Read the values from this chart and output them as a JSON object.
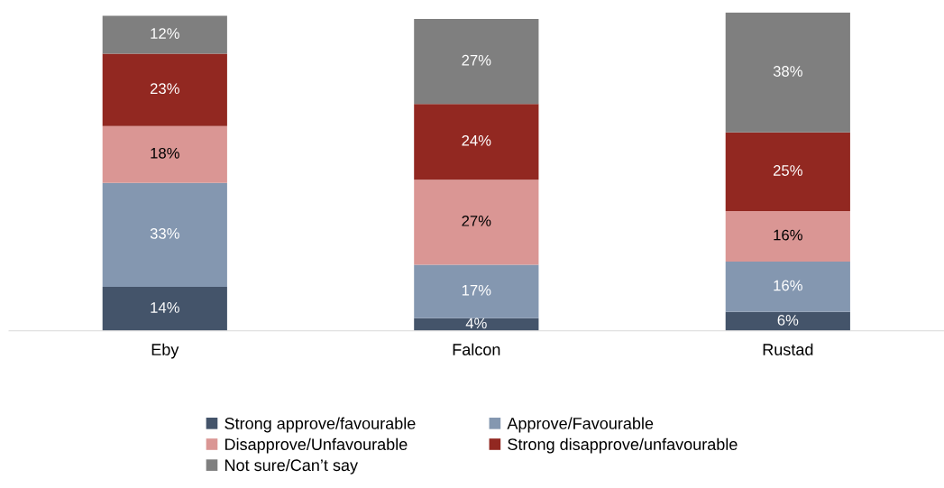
{
  "chart_data": {
    "type": "bar",
    "stacked": true,
    "categories": [
      "Eby",
      "Falcon",
      "Rustad"
    ],
    "series": [
      {
        "name": "Strong approve/favourable",
        "color": "#44546a",
        "values": [
          14,
          4,
          6
        ],
        "value_labels": [
          "14%",
          "4%",
          "6%"
        ]
      },
      {
        "name": "Approve/Favourable",
        "color": "#8497b0",
        "values": [
          33,
          17,
          16
        ],
        "value_labels": [
          "33%",
          "17%",
          "16%"
        ]
      },
      {
        "name": "Disapprove/Unfavourable",
        "color": "#da9694",
        "values": [
          18,
          27,
          16
        ],
        "value_labels": [
          "18%",
          "27%",
          "16%"
        ]
      },
      {
        "name": "Strong disapprove/unfavourable",
        "color": "#922821",
        "values": [
          23,
          24,
          25
        ],
        "value_labels": [
          "23%",
          "24%",
          "25%"
        ]
      },
      {
        "name": "Not sure/Can’t say",
        "color": "#7f7f7f",
        "values": [
          12,
          27,
          38
        ],
        "value_labels": [
          "12%",
          "27%",
          "38%"
        ]
      }
    ],
    "tick_labels": "x",
    "legend": "bottom"
  }
}
